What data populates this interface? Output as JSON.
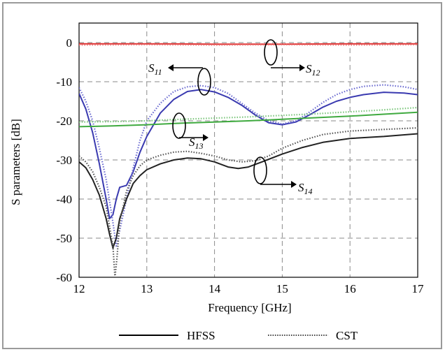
{
  "chart_data": {
    "type": "line",
    "xlabel": "Frequency [GHz]",
    "ylabel": "S parameters [dB]",
    "xlim": [
      12,
      17
    ],
    "ylim": [
      -60,
      5
    ],
    "grid": true,
    "x_ticks": [
      12,
      13,
      14,
      15,
      16,
      17
    ],
    "y_ticks": [
      0,
      -10,
      -20,
      -30,
      -40,
      -50,
      -60
    ],
    "legend": {
      "placement": "bottom",
      "entries": [
        {
          "label": "HFSS",
          "style": "solid"
        },
        {
          "label": "CST",
          "style": "dotted"
        }
      ]
    },
    "annotations": [
      {
        "label": "S",
        "sub": "11",
        "target": "S11"
      },
      {
        "label": "S",
        "sub": "12",
        "target": "S12"
      },
      {
        "label": "S",
        "sub": "13",
        "target": "S13"
      },
      {
        "label": "S",
        "sub": "14",
        "target": "S14"
      }
    ],
    "series": [
      {
        "key": "S12",
        "source": "HFSS",
        "style": "solid",
        "color": "#e03030",
        "points": [
          [
            12,
            -0.3
          ],
          [
            13,
            -0.3
          ],
          [
            14,
            -0.4
          ],
          [
            15,
            -0.4
          ],
          [
            16,
            -0.3
          ],
          [
            17,
            -0.3
          ]
        ]
      },
      {
        "key": "S12",
        "source": "CST",
        "style": "dotted",
        "color": "#e87070",
        "points": [
          [
            12,
            -0.6
          ],
          [
            13,
            -0.5
          ],
          [
            14,
            -0.6
          ],
          [
            15,
            -0.5
          ],
          [
            16,
            -0.6
          ],
          [
            17,
            -0.5
          ]
        ]
      },
      {
        "key": "S11",
        "source": "HFSS",
        "style": "solid",
        "color": "#3a3ab0",
        "points": [
          [
            12,
            -13
          ],
          [
            12.1,
            -17
          ],
          [
            12.2,
            -23
          ],
          [
            12.3,
            -31
          ],
          [
            12.4,
            -40
          ],
          [
            12.45,
            -45
          ],
          [
            12.5,
            -44
          ],
          [
            12.55,
            -40
          ],
          [
            12.6,
            -37
          ],
          [
            12.7,
            -36.5
          ],
          [
            12.8,
            -33
          ],
          [
            12.9,
            -28
          ],
          [
            13.0,
            -24
          ],
          [
            13.2,
            -18
          ],
          [
            13.4,
            -14.5
          ],
          [
            13.6,
            -12.5
          ],
          [
            13.8,
            -12
          ],
          [
            14.0,
            -12.6
          ],
          [
            14.2,
            -14
          ],
          [
            14.4,
            -16
          ],
          [
            14.6,
            -18.5
          ],
          [
            14.8,
            -20.5
          ],
          [
            15.0,
            -21
          ],
          [
            15.2,
            -20.3
          ],
          [
            15.4,
            -18.5
          ],
          [
            15.6,
            -16.5
          ],
          [
            15.8,
            -15
          ],
          [
            16.0,
            -14
          ],
          [
            16.2,
            -13.3
          ],
          [
            16.5,
            -12.7
          ],
          [
            16.8,
            -12.9
          ],
          [
            17,
            -13.3
          ]
        ]
      },
      {
        "key": "S11",
        "source": "CST",
        "style": "dotted",
        "color": "#6a6ad0",
        "points": [
          [
            12,
            -11.5
          ],
          [
            12.1,
            -15
          ],
          [
            12.2,
            -20
          ],
          [
            12.3,
            -27
          ],
          [
            12.4,
            -35
          ],
          [
            12.5,
            -46
          ],
          [
            12.55,
            -52
          ],
          [
            12.6,
            -48
          ],
          [
            12.7,
            -40
          ],
          [
            12.8,
            -32
          ],
          [
            12.9,
            -25
          ],
          [
            13.0,
            -20
          ],
          [
            13.2,
            -15.5
          ],
          [
            13.4,
            -12.5
          ],
          [
            13.6,
            -11.3
          ],
          [
            13.8,
            -11
          ],
          [
            14.0,
            -11.5
          ],
          [
            14.2,
            -13
          ],
          [
            14.4,
            -15.5
          ],
          [
            14.6,
            -18
          ],
          [
            14.8,
            -20
          ],
          [
            15.0,
            -20.8
          ],
          [
            15.2,
            -20
          ],
          [
            15.4,
            -17.8
          ],
          [
            15.6,
            -15.3
          ],
          [
            15.8,
            -13.3
          ],
          [
            16.0,
            -12
          ],
          [
            16.2,
            -11.2
          ],
          [
            16.5,
            -10.8
          ],
          [
            16.8,
            -11.3
          ],
          [
            17,
            -12
          ]
        ]
      },
      {
        "key": "S13",
        "source": "HFSS",
        "style": "solid",
        "color": "#3faa3f",
        "points": [
          [
            12,
            -21.5
          ],
          [
            12.5,
            -21.3
          ],
          [
            13,
            -21
          ],
          [
            13.5,
            -20.6
          ],
          [
            14,
            -20.3
          ],
          [
            14.5,
            -20
          ],
          [
            15,
            -19.6
          ],
          [
            15.5,
            -19.2
          ],
          [
            16,
            -18.8
          ],
          [
            16.5,
            -18.3
          ],
          [
            17,
            -17.8
          ]
        ]
      },
      {
        "key": "S13",
        "source": "CST",
        "style": "dotted",
        "color": "#7cc67c",
        "points": [
          [
            12,
            -20.3
          ],
          [
            12.5,
            -20.2
          ],
          [
            13,
            -20
          ],
          [
            13.5,
            -19.6
          ],
          [
            14,
            -19.3
          ],
          [
            14.5,
            -19
          ],
          [
            15,
            -18.6
          ],
          [
            15.5,
            -18.2
          ],
          [
            16,
            -17.7
          ],
          [
            16.5,
            -17.2
          ],
          [
            17,
            -16.6
          ]
        ]
      },
      {
        "key": "S14",
        "source": "HFSS",
        "style": "solid",
        "color": "#222222",
        "points": [
          [
            12,
            -30.5
          ],
          [
            12.1,
            -32
          ],
          [
            12.2,
            -35
          ],
          [
            12.3,
            -39
          ],
          [
            12.4,
            -45
          ],
          [
            12.45,
            -49
          ],
          [
            12.5,
            -52.5
          ],
          [
            12.55,
            -50
          ],
          [
            12.6,
            -45
          ],
          [
            12.7,
            -40
          ],
          [
            12.8,
            -36
          ],
          [
            12.9,
            -34
          ],
          [
            13.0,
            -32.5
          ],
          [
            13.2,
            -31
          ],
          [
            13.4,
            -30
          ],
          [
            13.6,
            -29.5
          ],
          [
            13.8,
            -29.7
          ],
          [
            14.0,
            -30.5
          ],
          [
            14.2,
            -31.8
          ],
          [
            14.35,
            -32.2
          ],
          [
            14.5,
            -31.8
          ],
          [
            14.7,
            -30.5
          ],
          [
            15.0,
            -28.5
          ],
          [
            15.3,
            -26.8
          ],
          [
            15.6,
            -25.5
          ],
          [
            16.0,
            -24.5
          ],
          [
            16.5,
            -24
          ],
          [
            17,
            -23.3
          ]
        ]
      },
      {
        "key": "S14",
        "source": "CST",
        "style": "dotted",
        "color": "#555555",
        "points": [
          [
            12,
            -29
          ],
          [
            12.1,
            -30.5
          ],
          [
            12.2,
            -33
          ],
          [
            12.3,
            -37
          ],
          [
            12.4,
            -42
          ],
          [
            12.5,
            -52
          ],
          [
            12.53,
            -60
          ],
          [
            12.56,
            -55
          ],
          [
            12.6,
            -46
          ],
          [
            12.7,
            -38
          ],
          [
            12.8,
            -34
          ],
          [
            12.9,
            -31.5
          ],
          [
            13.0,
            -30
          ],
          [
            13.2,
            -28.8
          ],
          [
            13.4,
            -28
          ],
          [
            13.6,
            -27.8
          ],
          [
            13.8,
            -28.3
          ],
          [
            14.0,
            -29
          ],
          [
            14.2,
            -30
          ],
          [
            14.4,
            -30.5
          ],
          [
            14.6,
            -30.2
          ],
          [
            14.8,
            -29
          ],
          [
            15.0,
            -27
          ],
          [
            15.3,
            -25
          ],
          [
            15.6,
            -23.5
          ],
          [
            16.0,
            -22.6
          ],
          [
            16.5,
            -22.2
          ],
          [
            17,
            -21.8
          ]
        ]
      }
    ]
  }
}
